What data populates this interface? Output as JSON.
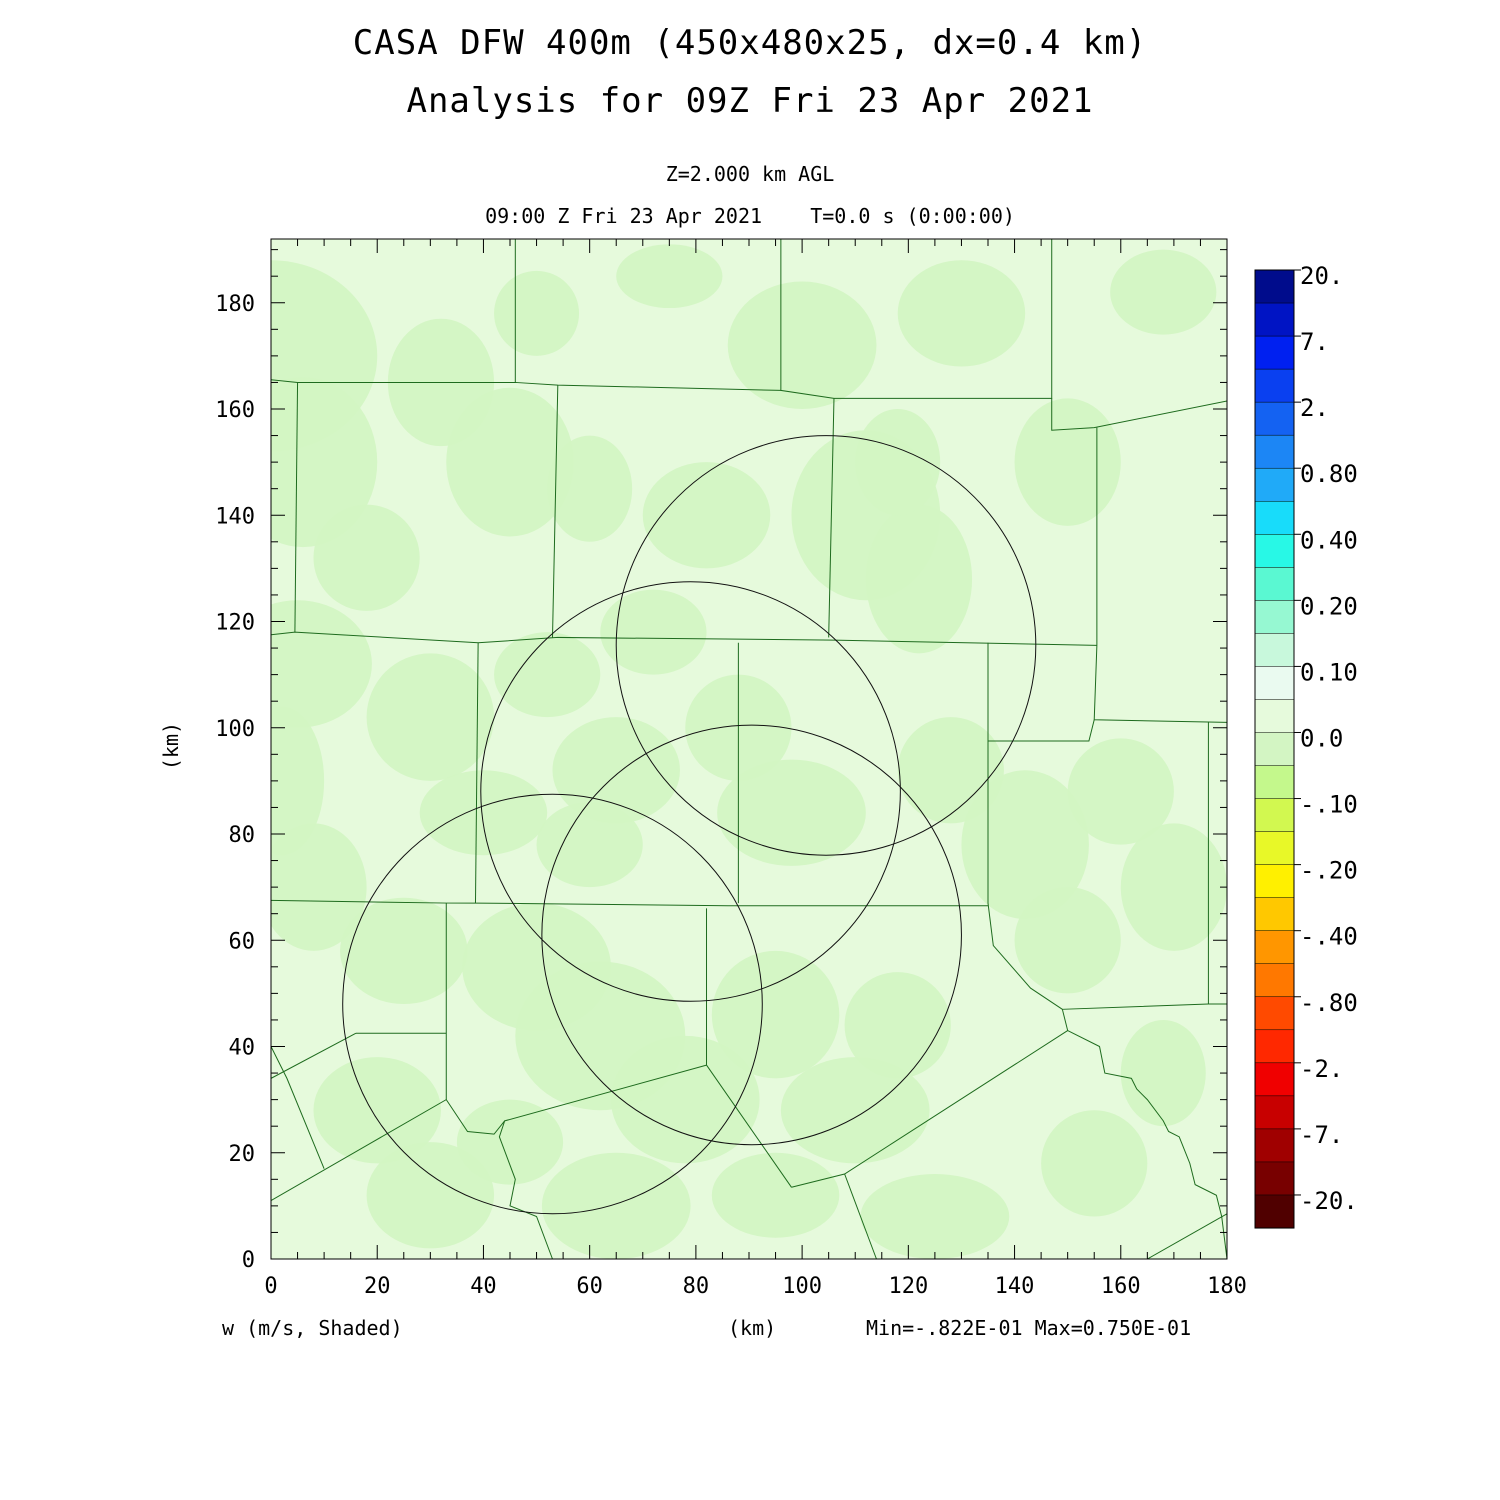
{
  "header": {
    "title_line1": "CASA DFW 400m (450x480x25, dx=0.4 km)",
    "title_line2": "Analysis for 09Z Fri 23 Apr 2021",
    "level": "Z=2.000 km AGL",
    "valid_time": "09:00 Z Fri 23 Apr 2021    T=0.0 s (0:00:00)"
  },
  "footer": {
    "field_label": "w (m/s, Shaded)",
    "unit_label": "(km)",
    "min_max": "Min=-.822E-01 Max=0.750E-01"
  },
  "chart_data": {
    "type": "heatmap",
    "title": "CASA DFW 400m (450x480x25, dx=0.4 km)",
    "subtitle": "Analysis for 09Z Fri 23 Apr 2021",
    "xlabel": "(km)",
    "ylabel": "(km)",
    "xlim": [
      0,
      180
    ],
    "ylim": [
      0,
      192
    ],
    "xticks": [
      0,
      20,
      40,
      60,
      80,
      100,
      120,
      140,
      160,
      180
    ],
    "yticks": [
      0,
      20,
      40,
      60,
      80,
      100,
      120,
      140,
      160,
      180
    ],
    "field": "w",
    "units": "m/s",
    "min": -0.0822,
    "max": 0.075,
    "dominant_color": "#e6fadc",
    "patch_color": "#d3f5c3",
    "colorbar": {
      "labels": [
        "20.",
        "7.",
        "2.",
        "0.80",
        "0.40",
        "0.20",
        "0.10",
        "0.0",
        "-.10",
        "-.20",
        "-.40",
        "-.80",
        "-2.",
        "-7.",
        "-20."
      ],
      "colors": [
        "#000c8c",
        "#0014c4",
        "#0020f0",
        "#0a40f0",
        "#1462f2",
        "#1c86f5",
        "#20aaf8",
        "#18dcfa",
        "#28f8e6",
        "#5af8d2",
        "#96f8d2",
        "#c8f8dc",
        "#eafaf0",
        "#e6fadc",
        "#d3f5c3",
        "#c4f88c",
        "#d2f850",
        "#e8f828",
        "#fff000",
        "#ffc800",
        "#ff9600",
        "#ff7800",
        "#ff4a00",
        "#ff2800",
        "#f00000",
        "#c80000",
        "#a00000",
        "#780000",
        "#500000"
      ]
    },
    "range_rings": [
      {
        "center": [
          53,
          48
        ],
        "radius": 39.5
      },
      {
        "center": [
          79,
          88
        ],
        "radius": 39.5
      },
      {
        "center": [
          90.5,
          61
        ],
        "radius": 39.5
      },
      {
        "center": [
          104.5,
          115.5
        ],
        "radius": 39.5
      }
    ]
  }
}
